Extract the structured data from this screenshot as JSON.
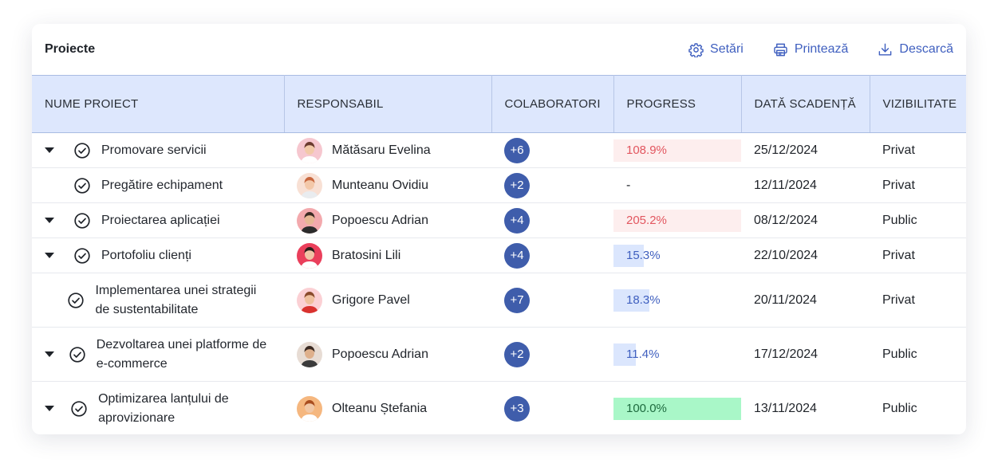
{
  "header": {
    "title": "Proiecte",
    "actions": {
      "settings": "Setări",
      "print": "Printează",
      "download": "Descarcă"
    }
  },
  "columns": [
    "NUME PROIECT",
    "RESPONSABIL",
    "COLABORATORI",
    "PROGRESS",
    "DATĂ SCADENȚĂ",
    "VIZIBILITATE"
  ],
  "rows": [
    {
      "name": "Promovare servicii",
      "expandable": true,
      "owner": "Mătăsaru Evelina",
      "collab": "+6",
      "progress_label": "108.9%",
      "progress_value": 108.9,
      "due": "25/12/2024",
      "visibility": "Privat"
    },
    {
      "name": "Pregătire echipament",
      "expandable": false,
      "owner": "Munteanu Ovidiu",
      "collab": "+2",
      "progress_label": "-",
      "progress_value": null,
      "due": "12/11/2024",
      "visibility": "Privat"
    },
    {
      "name": "Proiectarea aplicației",
      "expandable": true,
      "owner": "Popoescu Adrian",
      "collab": "+4",
      "progress_label": "205.2%",
      "progress_value": 205.2,
      "due": "08/12/2024",
      "visibility": "Public"
    },
    {
      "name": "Portofoliu clienți",
      "expandable": true,
      "owner": "Bratosini Lili",
      "collab": "+4",
      "progress_label": "15.3%",
      "progress_value": 15.3,
      "due": "22/10/2024",
      "visibility": "Privat"
    },
    {
      "name": "Implementarea unei strategii de sustentabilitate",
      "expandable": false,
      "owner": "Grigore Pavel",
      "collab": "+7",
      "progress_label": "18.3%",
      "progress_value": 18.3,
      "due": "20/11/2024",
      "visibility": "Privat"
    },
    {
      "name": "Dezvoltarea unei platforme de e-commerce",
      "expandable": true,
      "owner": "Popoescu Adrian",
      "collab": "+2",
      "progress_label": "11.4%",
      "progress_value": 11.4,
      "due": "17/12/2024",
      "visibility": "Public"
    },
    {
      "name": "Optimizarea lanțului de aprovizionare",
      "expandable": true,
      "owner": "Olteanu Ștefania",
      "collab": "+3",
      "progress_label": "100.0%",
      "progress_value": 100.0,
      "due": "13/11/2024",
      "visibility": "Public"
    }
  ],
  "colors": {
    "accent": "#3f5fbf",
    "header_bg": "#dde7fd",
    "collab_pill": "#3f5dab",
    "progress_over_bg": "#fdeeee",
    "progress_over_text": "#e2565f",
    "progress_partial_bg": "#dbe6fd",
    "progress_partial_text": "#3f5fbf",
    "progress_done_bg": "#a9f7c8",
    "progress_done_text": "#1e6b3f"
  },
  "icons": {
    "settings": "gear-icon",
    "print": "printer-icon",
    "download": "download-icon",
    "expand": "caret-down-icon",
    "status": "check-circle-icon"
  }
}
